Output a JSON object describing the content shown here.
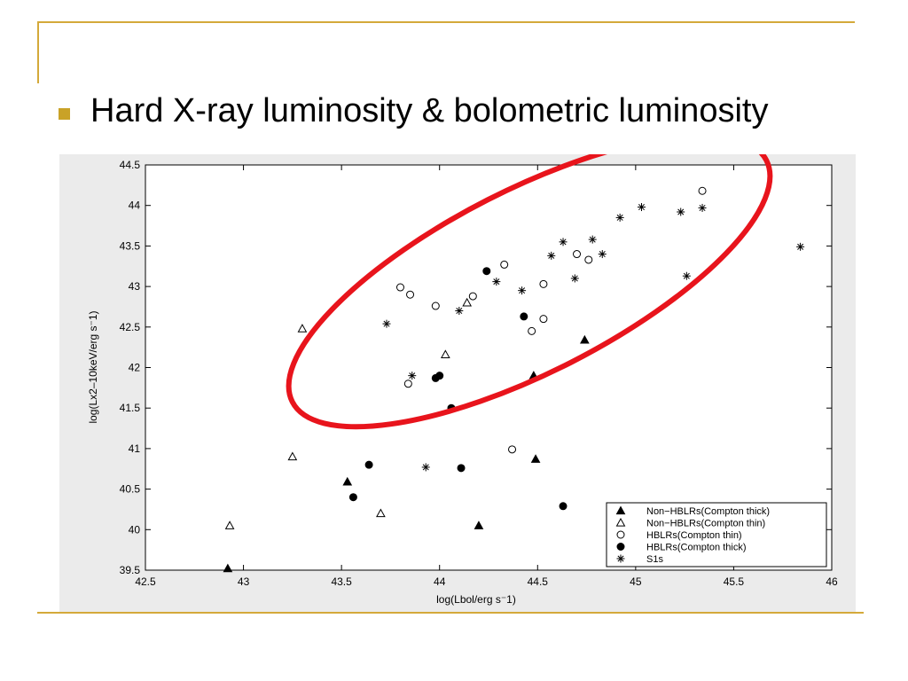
{
  "slide": {
    "title": "Hard X-ray luminosity & bolometric luminosity",
    "accent_color": "#d4a93a",
    "bullet_color": "#c9a227",
    "highlight_color": "#e8141c"
  },
  "chart_data": {
    "type": "scatter",
    "title": "",
    "xlabel": "log(Lbol/erg s⁻1)",
    "ylabel": "log(Lx2–10keV/erg s⁻1)",
    "xlim": [
      42.5,
      46
    ],
    "ylim": [
      39.5,
      44.5
    ],
    "xticks": [
      42.5,
      43,
      43.5,
      44,
      44.5,
      45,
      45.5,
      46
    ],
    "yticks": [
      39.5,
      40,
      40.5,
      41,
      41.5,
      42,
      42.5,
      43,
      43.5,
      44,
      44.5
    ],
    "legend_position": "bottom-right",
    "grid": false,
    "series": [
      {
        "name": "Non−HBLRs(Compton thick)",
        "marker": "filled-triangle",
        "points": [
          [
            42.92,
            39.52
          ],
          [
            43.53,
            40.59
          ],
          [
            44.2,
            40.05
          ],
          [
            44.49,
            40.87
          ],
          [
            44.48,
            41.9
          ],
          [
            44.74,
            42.34
          ]
        ]
      },
      {
        "name": "Non−HBLRs(Compton thin)",
        "marker": "open-triangle",
        "points": [
          [
            42.93,
            40.05
          ],
          [
            43.25,
            40.9
          ],
          [
            43.3,
            42.48
          ],
          [
            43.7,
            40.2
          ],
          [
            44.03,
            42.16
          ],
          [
            44.14,
            42.8
          ]
        ]
      },
      {
        "name": "HBLRs(Compton thin)",
        "marker": "open-circle",
        "points": [
          [
            43.8,
            42.99
          ],
          [
            43.85,
            42.9
          ],
          [
            43.84,
            41.8
          ],
          [
            43.98,
            42.76
          ],
          [
            44.17,
            42.88
          ],
          [
            44.33,
            43.27
          ],
          [
            44.37,
            40.99
          ],
          [
            44.47,
            42.45
          ],
          [
            44.53,
            43.03
          ],
          [
            44.53,
            42.6
          ],
          [
            44.7,
            43.4
          ],
          [
            44.76,
            43.33
          ],
          [
            45.34,
            44.18
          ]
        ]
      },
      {
        "name": "HBLRs(Compton thick)",
        "marker": "filled-circle",
        "points": [
          [
            43.56,
            40.4
          ],
          [
            43.64,
            40.8
          ],
          [
            43.98,
            41.87
          ],
          [
            44.0,
            41.9
          ],
          [
            44.06,
            41.5
          ],
          [
            44.11,
            40.76
          ],
          [
            44.24,
            43.19
          ],
          [
            44.43,
            42.63
          ],
          [
            44.63,
            40.29
          ]
        ]
      },
      {
        "name": "S1s",
        "marker": "star",
        "points": [
          [
            43.73,
            42.54
          ],
          [
            43.86,
            41.9
          ],
          [
            43.93,
            40.77
          ],
          [
            44.1,
            42.7
          ],
          [
            44.29,
            43.06
          ],
          [
            44.42,
            42.95
          ],
          [
            44.57,
            43.38
          ],
          [
            44.63,
            43.55
          ],
          [
            44.69,
            43.1
          ],
          [
            44.78,
            43.58
          ],
          [
            44.83,
            43.4
          ],
          [
            44.92,
            43.85
          ],
          [
            45.03,
            43.98
          ],
          [
            45.23,
            43.92
          ],
          [
            45.34,
            43.97
          ],
          [
            45.26,
            43.13
          ],
          [
            45.84,
            43.49
          ]
        ]
      }
    ]
  }
}
